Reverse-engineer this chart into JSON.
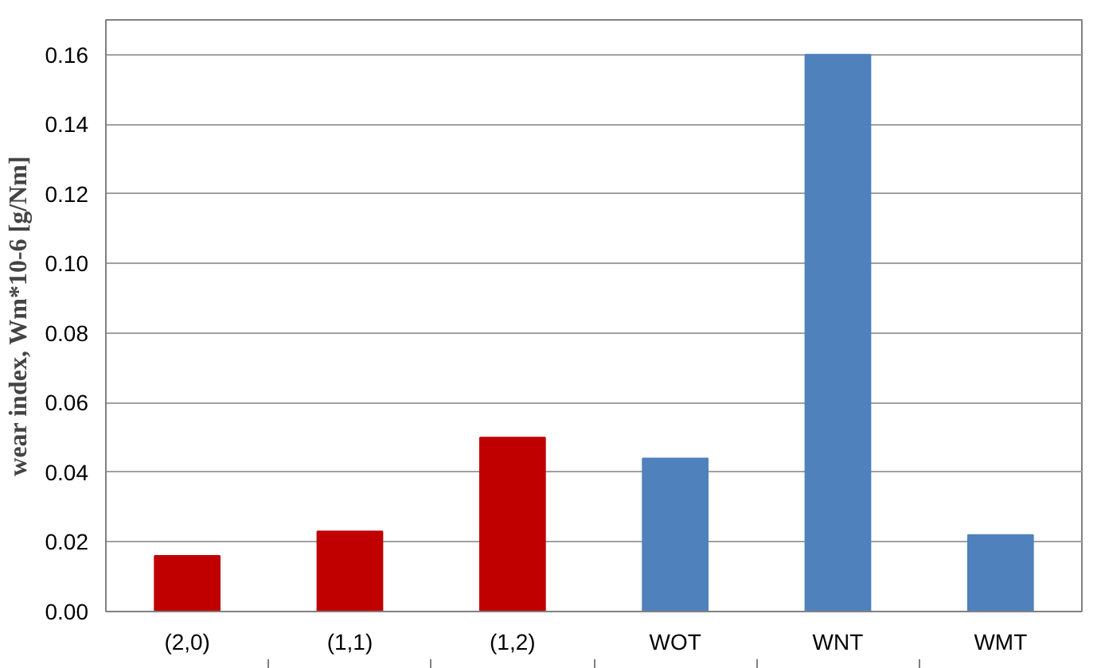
{
  "chart_data": {
    "type": "bar",
    "ylabel": "wear index, Wm*10-6 [g/Nm]",
    "categories": [
      "(2,0)",
      "(1,1)",
      "(1,2)",
      "WOT",
      "WNT",
      "WMT"
    ],
    "values": [
      0.016,
      0.023,
      0.05,
      0.044,
      0.16,
      0.022
    ],
    "colors": [
      "#c00000",
      "#c00000",
      "#c00000",
      "#4f81bd",
      "#4f81bd",
      "#4f81bd"
    ],
    "ylim": [
      0,
      0.17
    ],
    "yticks": [
      {
        "value": 0,
        "label": "0.00"
      },
      {
        "value": 0.02,
        "label": "0.02"
      },
      {
        "value": 0.04,
        "label": "0.04"
      },
      {
        "value": 0.06,
        "label": "0.06"
      },
      {
        "value": 0.08,
        "label": "0.08"
      },
      {
        "value": 0.1,
        "label": "0.10"
      },
      {
        "value": 0.12,
        "label": "0.12"
      },
      {
        "value": 0.14,
        "label": "0.14"
      },
      {
        "value": 0.16,
        "label": "0.16"
      }
    ],
    "grid": "y"
  }
}
